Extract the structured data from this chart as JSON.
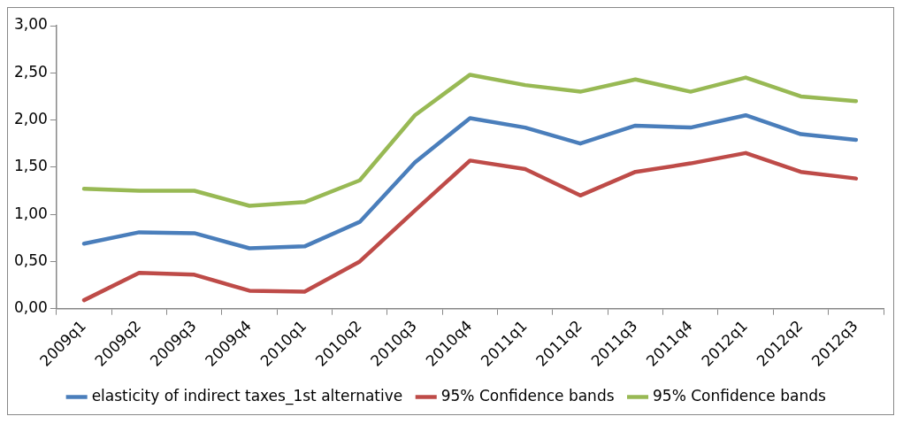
{
  "chart_data": {
    "type": "line",
    "categories": [
      "2009q1",
      "2009q2",
      "2009q3",
      "2009q4",
      "2010q1",
      "2010q2",
      "2010q3",
      "2010q4",
      "2011q1",
      "2011q2",
      "2011q3",
      "2011q4",
      "2012q1",
      "2012q2",
      "2012q3"
    ],
    "series": [
      {
        "name": "elasticity of indirect taxes_1st alternative",
        "color": "#4a7ebb",
        "values": [
          0.69,
          0.81,
          0.8,
          0.64,
          0.66,
          0.92,
          1.55,
          2.02,
          1.92,
          1.75,
          1.94,
          1.92,
          2.05,
          1.85,
          1.79
        ]
      },
      {
        "name": "95% Confidence bands",
        "color": "#be4b48",
        "values": [
          0.09,
          0.38,
          0.36,
          0.19,
          0.18,
          0.5,
          1.04,
          1.57,
          1.48,
          1.2,
          1.45,
          1.54,
          1.65,
          1.45,
          1.38
        ]
      },
      {
        "name": "95% Confidence bands",
        "color": "#98b954",
        "values": [
          1.27,
          1.25,
          1.25,
          1.09,
          1.13,
          1.36,
          2.05,
          2.48,
          2.37,
          2.3,
          2.43,
          2.3,
          2.45,
          2.25,
          2.2
        ]
      }
    ],
    "ylim": [
      0,
      3
    ],
    "yticks": [
      {
        "value": 0,
        "label": "0,00"
      },
      {
        "value": 0.5,
        "label": "0,50"
      },
      {
        "value": 1,
        "label": "1,00"
      },
      {
        "value": 1.5,
        "label": "1,50"
      },
      {
        "value": 2,
        "label": "2,00"
      },
      {
        "value": 2.5,
        "label": "2,50"
      },
      {
        "value": 3,
        "label": "3,00"
      }
    ],
    "grid": false,
    "legend": "bottom",
    "marker": "none",
    "line_style": "solid"
  }
}
